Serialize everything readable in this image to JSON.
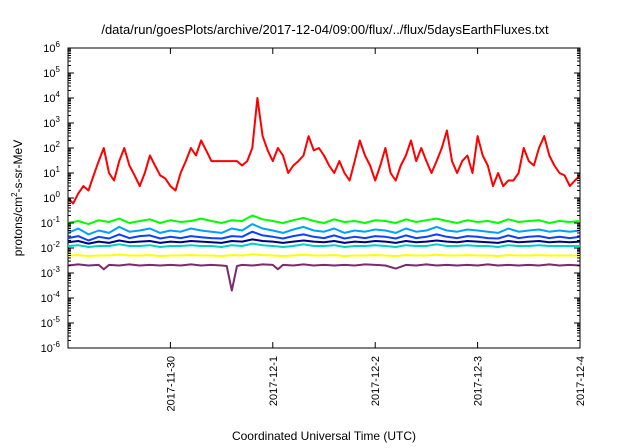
{
  "chart_data": {
    "type": "line",
    "title": "/data/run/goesPlots/archive/2017-12-04/09:00/flux/../flux/5daysEarthFluxes.txt",
    "xlabel": "Coordinated Universal Time (UTC)",
    "ylabel_main": "protons/cm",
    "ylabel_sup": "2",
    "ylabel_rest": "-s-sr-MeV",
    "yscale": "log",
    "ylim_exp": [
      -6,
      6
    ],
    "ytick_exps": [
      "-6",
      "-5",
      "-4",
      "-3",
      "-2",
      "-1",
      "0",
      "1",
      "2",
      "3",
      "4",
      "5",
      "6"
    ],
    "ytick_base": "10",
    "xlim_days": [
      0,
      5
    ],
    "xticks": [
      {
        "label": "2017-11-30",
        "day": 1.0
      },
      {
        "label": "2017-12-1",
        "day": 2.0
      },
      {
        "label": "2017-12-2",
        "day": 3.0
      },
      {
        "label": "2017-12-3",
        "day": 4.0
      },
      {
        "label": "2017-12-4",
        "day": 5.0
      }
    ],
    "grid": false,
    "series": [
      {
        "color": "#ff0000",
        "x": [
          0.0,
          0.05,
          0.1,
          0.15,
          0.2,
          0.25,
          0.3,
          0.35,
          0.4,
          0.45,
          0.5,
          0.55,
          0.6,
          0.65,
          0.7,
          0.75,
          0.8,
          0.85,
          0.9,
          0.95,
          1.0,
          1.05,
          1.1,
          1.15,
          1.2,
          1.25,
          1.3,
          1.35,
          1.4,
          1.45,
          1.5,
          1.55,
          1.6,
          1.65,
          1.7,
          1.75,
          1.8,
          1.85,
          1.9,
          1.95,
          2.0,
          2.05,
          2.1,
          2.15,
          2.2,
          2.25,
          2.3,
          2.35,
          2.4,
          2.45,
          2.5,
          2.55,
          2.6,
          2.65,
          2.7,
          2.75,
          2.8,
          2.85,
          2.9,
          2.95,
          3.0,
          3.05,
          3.1,
          3.15,
          3.2,
          3.25,
          3.3,
          3.35,
          3.4,
          3.45,
          3.5,
          3.55,
          3.6,
          3.65,
          3.7,
          3.75,
          3.8,
          3.85,
          3.9,
          3.95,
          4.0,
          4.05,
          4.1,
          4.15,
          4.2,
          4.25,
          4.3,
          4.35,
          4.4,
          4.45,
          4.5,
          4.55,
          4.6,
          4.65,
          4.7,
          4.75,
          4.8,
          4.85,
          4.9,
          4.95,
          5.0
        ],
        "y": [
          1,
          0.6,
          1.5,
          3,
          2,
          8,
          30,
          100,
          10,
          5,
          30,
          100,
          20,
          8,
          3,
          10,
          50,
          20,
          8,
          6,
          3,
          2,
          10,
          30,
          100,
          50,
          200,
          80,
          30,
          30,
          30,
          30,
          30,
          30,
          20,
          30,
          100,
          10000,
          300,
          80,
          30,
          100,
          50,
          10,
          20,
          30,
          50,
          300,
          80,
          100,
          50,
          20,
          10,
          30,
          10,
          5,
          30,
          200,
          50,
          20,
          5,
          20,
          100,
          10,
          5,
          20,
          50,
          200,
          30,
          100,
          30,
          10,
          30,
          100,
          500,
          30,
          10,
          30,
          50,
          10,
          300,
          50,
          20,
          3,
          10,
          3,
          5,
          5,
          10,
          100,
          30,
          20,
          100,
          300,
          50,
          20,
          10,
          8,
          3,
          5,
          8
        ]
      },
      {
        "color": "#00ff00",
        "x": [
          0.0,
          0.1,
          0.2,
          0.3,
          0.4,
          0.5,
          0.6,
          0.7,
          0.8,
          0.9,
          1.0,
          1.1,
          1.2,
          1.3,
          1.4,
          1.5,
          1.6,
          1.7,
          1.8,
          1.9,
          2.0,
          2.1,
          2.2,
          2.3,
          2.4,
          2.5,
          2.6,
          2.7,
          2.8,
          2.9,
          3.0,
          3.1,
          3.2,
          3.3,
          3.4,
          3.5,
          3.6,
          3.7,
          3.8,
          3.9,
          4.0,
          4.1,
          4.2,
          4.3,
          4.4,
          4.5,
          4.6,
          4.7,
          4.8,
          4.9,
          5.0
        ],
        "y": [
          0.1,
          0.12,
          0.09,
          0.13,
          0.11,
          0.15,
          0.1,
          0.12,
          0.14,
          0.1,
          0.13,
          0.11,
          0.12,
          0.15,
          0.12,
          0.1,
          0.13,
          0.12,
          0.2,
          0.14,
          0.12,
          0.1,
          0.13,
          0.16,
          0.12,
          0.1,
          0.14,
          0.11,
          0.12,
          0.1,
          0.13,
          0.12,
          0.1,
          0.14,
          0.11,
          0.13,
          0.15,
          0.12,
          0.1,
          0.13,
          0.11,
          0.12,
          0.1,
          0.14,
          0.11,
          0.12,
          0.13,
          0.1,
          0.12,
          0.11,
          0.12
        ]
      },
      {
        "color": "#00a0ff",
        "x": [
          0.0,
          0.1,
          0.2,
          0.3,
          0.4,
          0.5,
          0.6,
          0.7,
          0.8,
          0.9,
          1.0,
          1.1,
          1.2,
          1.3,
          1.4,
          1.5,
          1.6,
          1.7,
          1.8,
          1.9,
          2.0,
          2.1,
          2.2,
          2.3,
          2.4,
          2.5,
          2.6,
          2.7,
          2.8,
          2.9,
          3.0,
          3.1,
          3.2,
          3.3,
          3.4,
          3.5,
          3.6,
          3.7,
          3.8,
          3.9,
          4.0,
          4.1,
          4.2,
          4.3,
          4.4,
          4.5,
          4.6,
          4.7,
          4.8,
          4.9,
          5.0
        ],
        "y": [
          0.04,
          0.06,
          0.035,
          0.05,
          0.04,
          0.07,
          0.045,
          0.05,
          0.06,
          0.04,
          0.05,
          0.045,
          0.06,
          0.05,
          0.045,
          0.04,
          0.06,
          0.05,
          0.09,
          0.06,
          0.05,
          0.04,
          0.055,
          0.07,
          0.05,
          0.045,
          0.06,
          0.04,
          0.05,
          0.045,
          0.055,
          0.05,
          0.04,
          0.06,
          0.045,
          0.05,
          0.07,
          0.05,
          0.045,
          0.055,
          0.05,
          0.045,
          0.04,
          0.06,
          0.045,
          0.05,
          0.055,
          0.045,
          0.05,
          0.045,
          0.05
        ]
      },
      {
        "color": "#1040ff",
        "x": [
          0.0,
          0.1,
          0.2,
          0.3,
          0.4,
          0.5,
          0.6,
          0.7,
          0.8,
          0.9,
          1.0,
          1.1,
          1.2,
          1.3,
          1.4,
          1.5,
          1.6,
          1.7,
          1.8,
          1.9,
          2.0,
          2.1,
          2.2,
          2.3,
          2.4,
          2.5,
          2.6,
          2.7,
          2.8,
          2.9,
          3.0,
          3.1,
          3.2,
          3.3,
          3.4,
          3.5,
          3.6,
          3.7,
          3.8,
          3.9,
          4.0,
          4.1,
          4.2,
          4.3,
          4.4,
          4.5,
          4.6,
          4.7,
          4.8,
          4.9,
          5.0
        ],
        "y": [
          0.025,
          0.03,
          0.02,
          0.028,
          0.024,
          0.035,
          0.025,
          0.03,
          0.032,
          0.024,
          0.028,
          0.025,
          0.03,
          0.027,
          0.025,
          0.024,
          0.03,
          0.028,
          0.045,
          0.032,
          0.028,
          0.024,
          0.03,
          0.035,
          0.028,
          0.025,
          0.032,
          0.024,
          0.028,
          0.025,
          0.03,
          0.028,
          0.024,
          0.032,
          0.025,
          0.028,
          0.035,
          0.028,
          0.025,
          0.03,
          0.028,
          0.025,
          0.024,
          0.032,
          0.025,
          0.028,
          0.03,
          0.025,
          0.028,
          0.025,
          0.028
        ]
      },
      {
        "color": "#00d0c0",
        "x": [
          0.0,
          0.1,
          0.2,
          0.3,
          0.4,
          0.5,
          0.6,
          0.7,
          0.8,
          0.9,
          1.0,
          1.1,
          1.2,
          1.3,
          1.4,
          1.5,
          1.6,
          1.7,
          1.8,
          1.9,
          2.0,
          2.1,
          2.2,
          2.3,
          2.4,
          2.5,
          2.6,
          2.7,
          2.8,
          2.9,
          3.0,
          3.1,
          3.2,
          3.3,
          3.4,
          3.5,
          3.6,
          3.7,
          3.8,
          3.9,
          4.0,
          4.1,
          4.2,
          4.3,
          4.4,
          4.5,
          4.6,
          4.7,
          4.8,
          4.9,
          5.0
        ],
        "y": [
          0.012,
          0.013,
          0.011,
          0.012,
          0.012,
          0.014,
          0.012,
          0.012,
          0.013,
          0.011,
          0.012,
          0.012,
          0.013,
          0.012,
          0.012,
          0.011,
          0.013,
          0.012,
          0.015,
          0.013,
          0.012,
          0.011,
          0.012,
          0.014,
          0.012,
          0.012,
          0.013,
          0.011,
          0.012,
          0.012,
          0.013,
          0.012,
          0.011,
          0.013,
          0.012,
          0.012,
          0.014,
          0.012,
          0.012,
          0.013,
          0.012,
          0.012,
          0.011,
          0.013,
          0.012,
          0.012,
          0.013,
          0.012,
          0.012,
          0.012,
          0.012
        ]
      },
      {
        "color": "#000080",
        "x": [
          0.0,
          0.1,
          0.2,
          0.3,
          0.4,
          0.5,
          0.6,
          0.7,
          0.8,
          0.9,
          1.0,
          1.1,
          1.2,
          1.3,
          1.4,
          1.5,
          1.6,
          1.7,
          1.8,
          1.9,
          2.0,
          2.1,
          2.2,
          2.3,
          2.4,
          2.5,
          2.6,
          2.7,
          2.8,
          2.9,
          3.0,
          3.1,
          3.2,
          3.3,
          3.4,
          3.5,
          3.6,
          3.7,
          3.8,
          3.9,
          4.0,
          4.1,
          4.2,
          4.3,
          4.4,
          4.5,
          4.6,
          4.7,
          4.8,
          4.9,
          5.0
        ],
        "y": [
          0.017,
          0.019,
          0.015,
          0.018,
          0.016,
          0.02,
          0.017,
          0.018,
          0.019,
          0.016,
          0.018,
          0.017,
          0.019,
          0.018,
          0.017,
          0.016,
          0.019,
          0.018,
          0.022,
          0.019,
          0.018,
          0.016,
          0.018,
          0.02,
          0.018,
          0.017,
          0.019,
          0.016,
          0.018,
          0.017,
          0.019,
          0.018,
          0.016,
          0.019,
          0.017,
          0.018,
          0.02,
          0.018,
          0.017,
          0.019,
          0.018,
          0.017,
          0.016,
          0.019,
          0.017,
          0.018,
          0.019,
          0.017,
          0.018,
          0.017,
          0.018
        ]
      },
      {
        "color": "#ffff00",
        "x": [
          0.0,
          0.1,
          0.2,
          0.3,
          0.4,
          0.5,
          0.6,
          0.7,
          0.8,
          0.9,
          1.0,
          1.1,
          1.2,
          1.3,
          1.4,
          1.5,
          1.6,
          1.7,
          1.8,
          1.9,
          2.0,
          2.1,
          2.2,
          2.3,
          2.4,
          2.5,
          2.6,
          2.7,
          2.8,
          2.9,
          3.0,
          3.1,
          3.2,
          3.3,
          3.4,
          3.5,
          3.6,
          3.7,
          3.8,
          3.9,
          4.0,
          4.1,
          4.2,
          4.3,
          4.4,
          4.5,
          4.6,
          4.7,
          4.8,
          4.9,
          5.0
        ],
        "y": [
          0.005,
          0.0052,
          0.0048,
          0.005,
          0.005,
          0.0055,
          0.005,
          0.005,
          0.0052,
          0.0048,
          0.005,
          0.005,
          0.0052,
          0.005,
          0.005,
          0.0048,
          0.0052,
          0.005,
          0.0056,
          0.0052,
          0.005,
          0.0048,
          0.005,
          0.0054,
          0.005,
          0.005,
          0.0052,
          0.0048,
          0.005,
          0.005,
          0.0052,
          0.005,
          0.0048,
          0.0052,
          0.005,
          0.005,
          0.0054,
          0.005,
          0.005,
          0.0052,
          0.005,
          0.005,
          0.0048,
          0.0052,
          0.005,
          0.005,
          0.0052,
          0.005,
          0.005,
          0.005,
          0.005
        ]
      },
      {
        "color": "#7b2a6b",
        "x": [
          0.0,
          0.1,
          0.2,
          0.3,
          0.35,
          0.4,
          0.5,
          0.6,
          0.7,
          0.8,
          0.9,
          1.0,
          1.1,
          1.2,
          1.3,
          1.4,
          1.5,
          1.55,
          1.6,
          1.65,
          1.7,
          1.8,
          1.9,
          2.0,
          2.05,
          2.1,
          2.2,
          2.3,
          2.4,
          2.5,
          2.6,
          2.7,
          2.8,
          2.9,
          3.0,
          3.1,
          3.2,
          3.3,
          3.4,
          3.5,
          3.6,
          3.7,
          3.8,
          3.9,
          4.0,
          4.1,
          4.2,
          4.3,
          4.4,
          4.5,
          4.6,
          4.7,
          4.8,
          4.9,
          5.0
        ],
        "y": [
          0.002,
          0.0022,
          0.002,
          0.0021,
          0.0014,
          0.0021,
          0.002,
          0.0022,
          0.002,
          0.0021,
          0.002,
          0.0021,
          0.002,
          0.0022,
          0.002,
          0.0021,
          0.002,
          0.0019,
          0.0002,
          0.0019,
          0.0021,
          0.002,
          0.0022,
          0.0021,
          0.0014,
          0.0021,
          0.002,
          0.0022,
          0.002,
          0.0021,
          0.002,
          0.0021,
          0.002,
          0.0022,
          0.0021,
          0.002,
          0.0015,
          0.0021,
          0.002,
          0.0022,
          0.002,
          0.0021,
          0.002,
          0.0021,
          0.002,
          0.0022,
          0.002,
          0.0021,
          0.002,
          0.0021,
          0.002,
          0.0022,
          0.002,
          0.0021,
          0.002
        ]
      }
    ]
  }
}
